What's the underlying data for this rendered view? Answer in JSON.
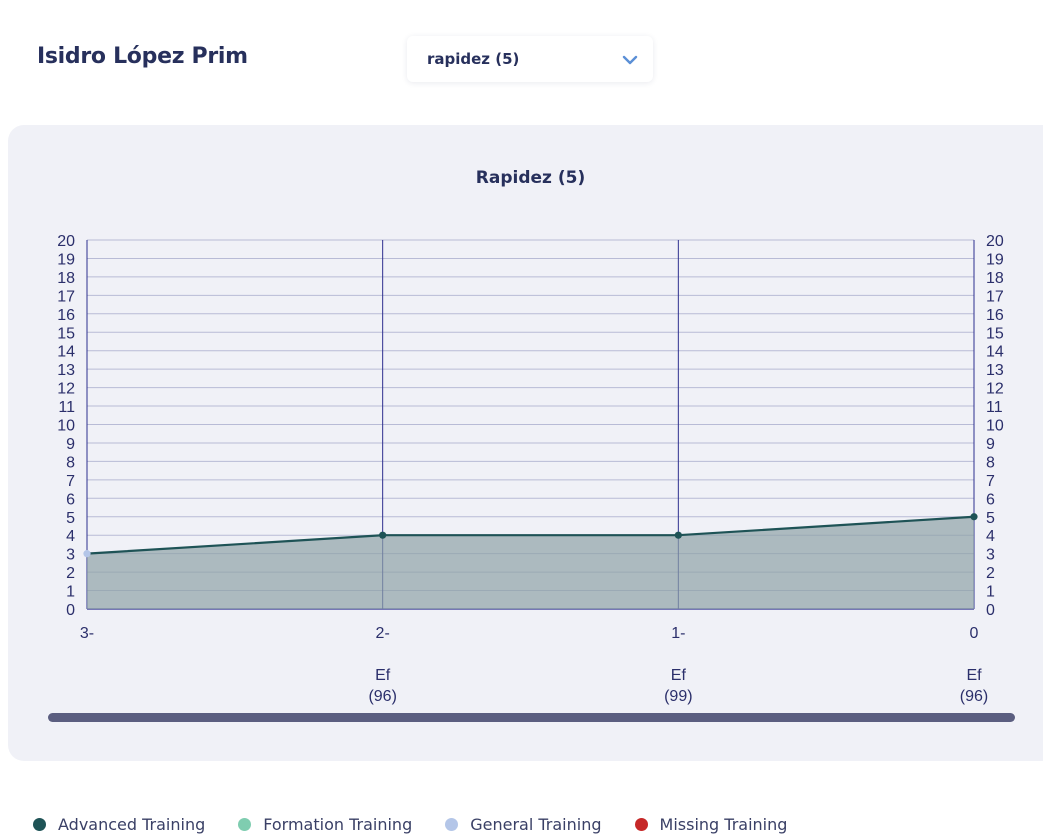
{
  "header": {
    "player_name": "Isidro López Prim",
    "select_value": "rapidez (5)"
  },
  "colors": {
    "advanced": "#1e5356",
    "formation": "#7fcdb0",
    "general": "#b4c6e8",
    "missing": "#c62828",
    "area_fill": "#8fa3a7",
    "grid": "#b8bbd6",
    "axis": "#2d2f8f",
    "scrollbar": "#5b5e80"
  },
  "legend": [
    {
      "label": "Advanced Training",
      "color": "#1e5356"
    },
    {
      "label": "Formation Training",
      "color": "#7fcdb0"
    },
    {
      "label": "General Training",
      "color": "#b4c6e8"
    },
    {
      "label": "Missing Training",
      "color": "#c62828"
    }
  ],
  "chart_data": {
    "type": "area",
    "title": "Rapidez (5)",
    "xlabel": "",
    "ylabel": "",
    "x": [
      "3-",
      "2-",
      "1-",
      "0"
    ],
    "x_annotations": [
      "",
      "Ef\n(96)",
      "Ef\n(99)",
      "Ef\n(96)"
    ],
    "ylim": [
      0,
      20
    ],
    "y_ticks": [
      0,
      1,
      2,
      3,
      4,
      5,
      6,
      7,
      8,
      9,
      10,
      11,
      12,
      13,
      14,
      15,
      16,
      17,
      18,
      19,
      20
    ],
    "grid": true,
    "series": [
      {
        "values": [
          3,
          4,
          4,
          5
        ],
        "point_types": [
          "general",
          "advanced",
          "advanced",
          "advanced"
        ]
      }
    ]
  }
}
